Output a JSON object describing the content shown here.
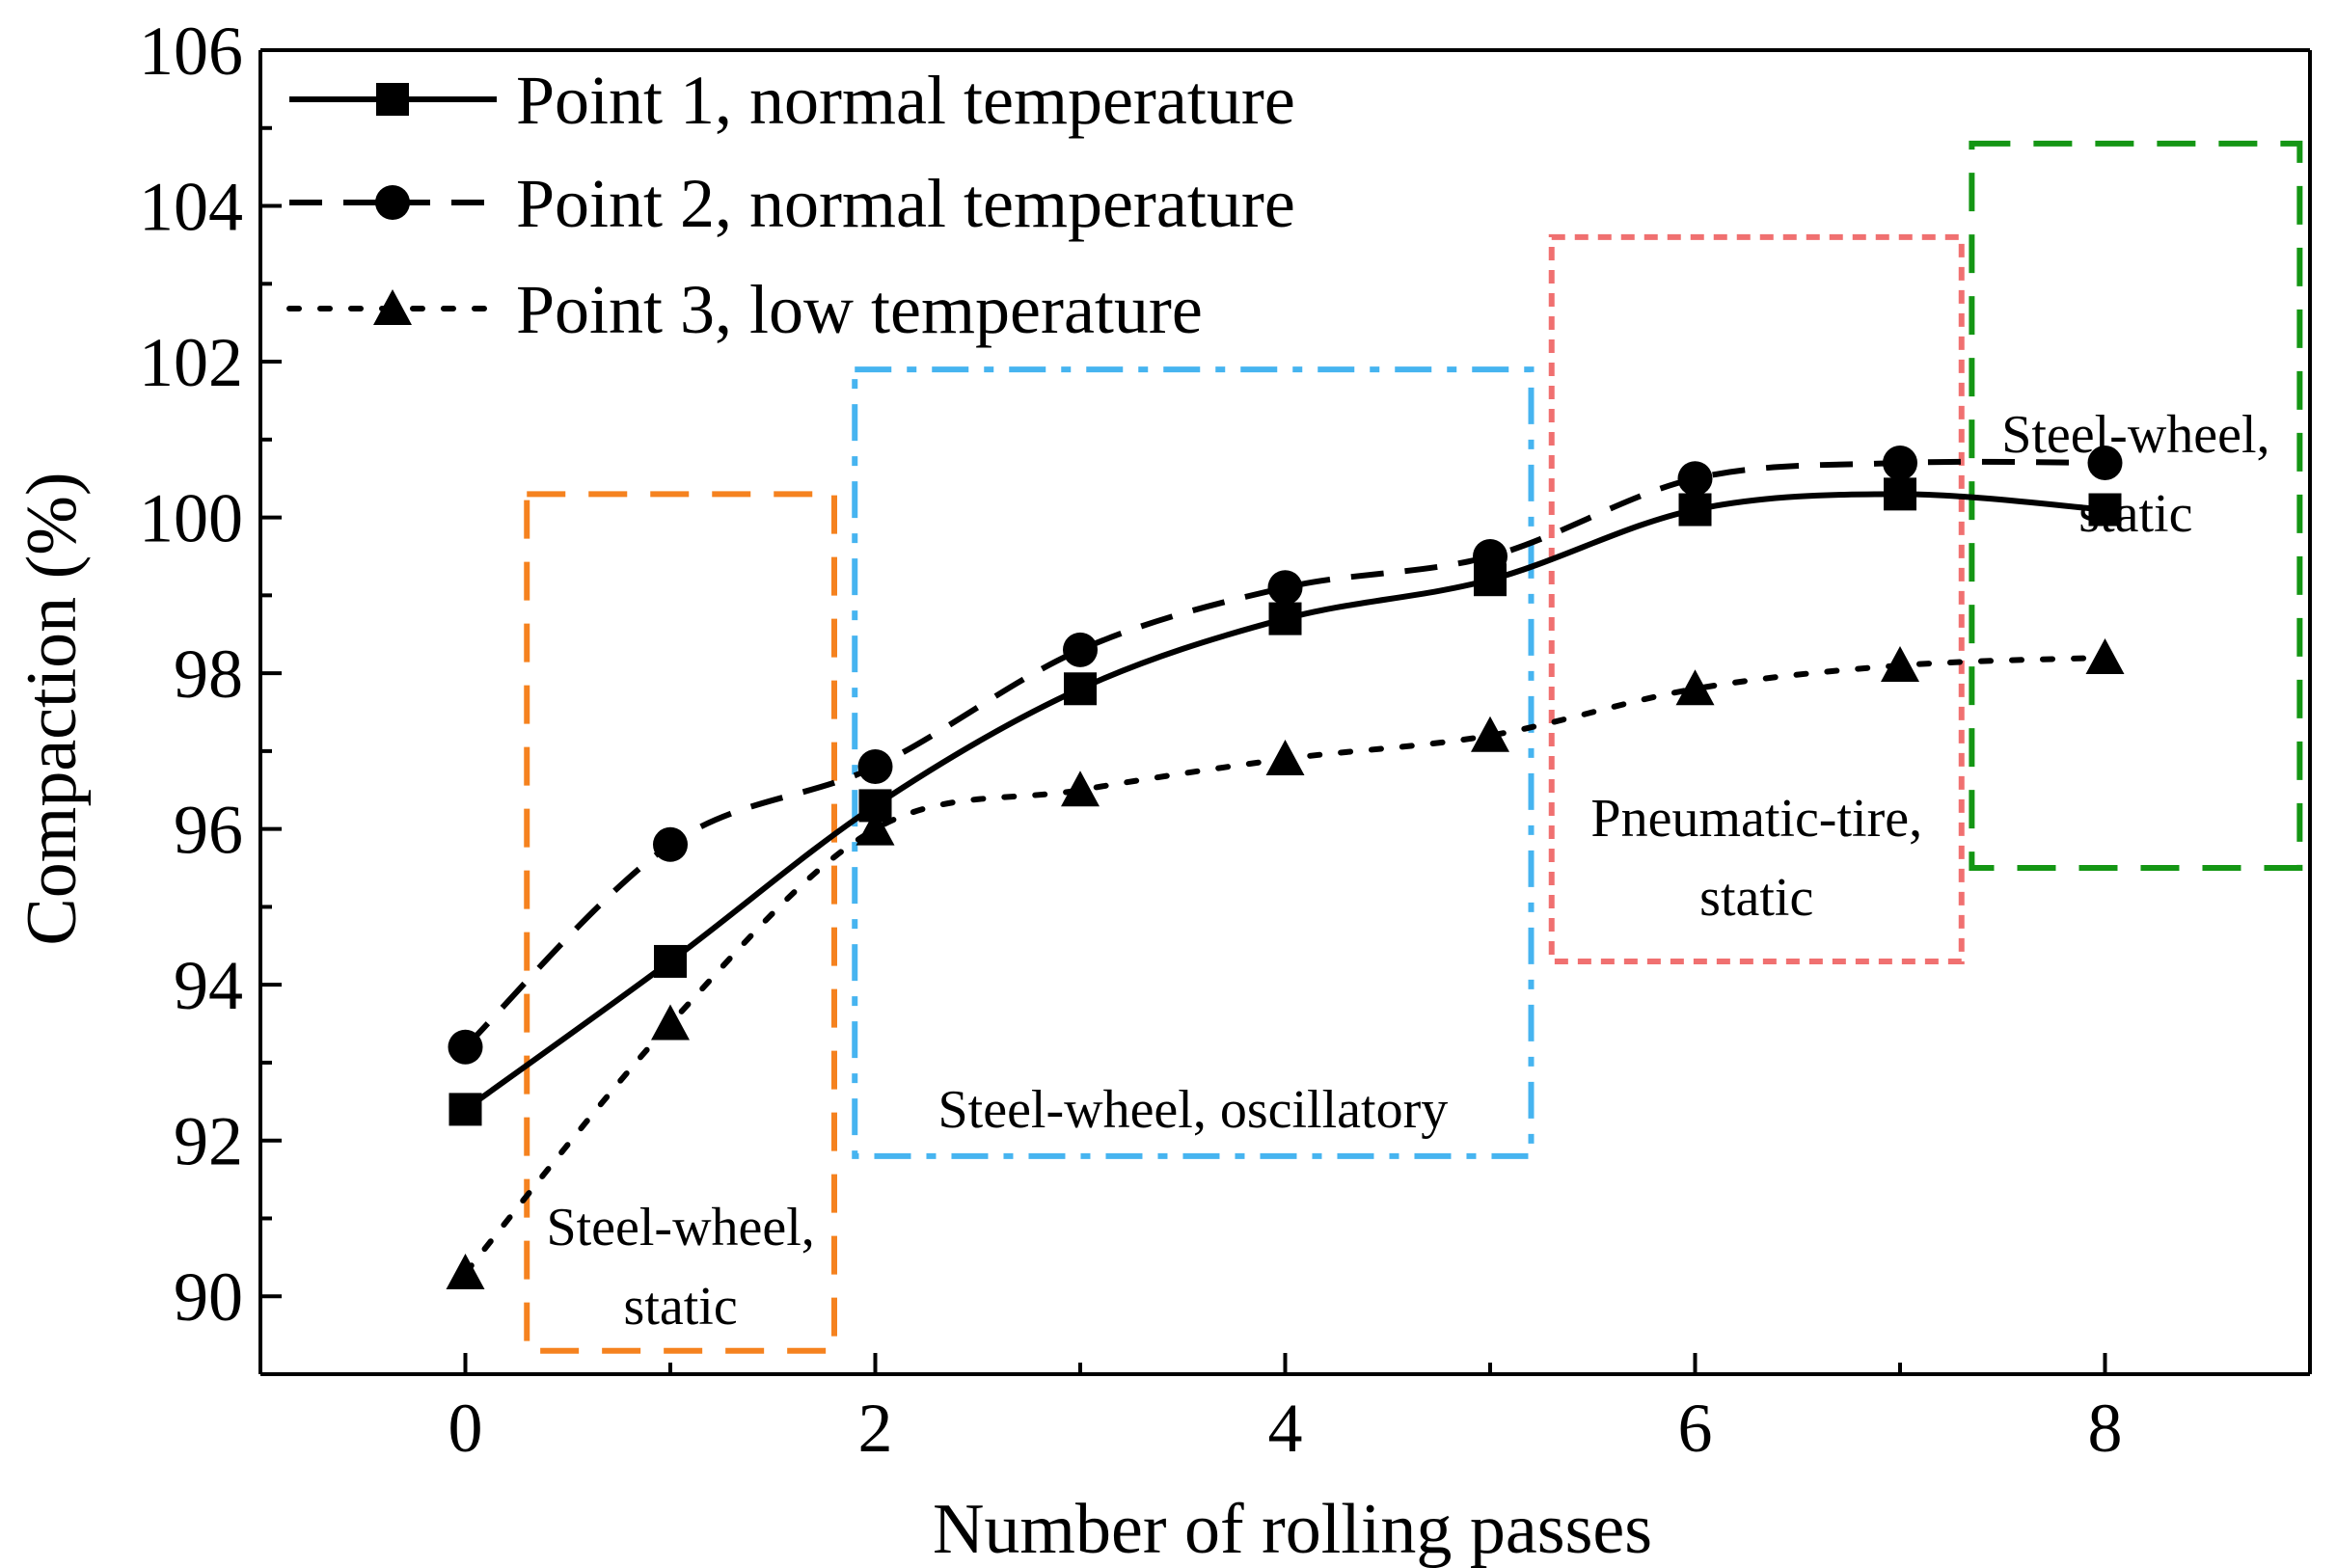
{
  "chart_data": {
    "type": "line",
    "xlabel": "Number of rolling passes",
    "ylabel": "Compaction (%)",
    "xlim": [
      -1,
      9
    ],
    "ylim": [
      89,
      106
    ],
    "xticks": [
      0,
      2,
      4,
      6,
      8
    ],
    "yticks": [
      90,
      92,
      94,
      96,
      98,
      100,
      102,
      104,
      106
    ],
    "grid": false,
    "legend_position": "top-left",
    "x": [
      0,
      1,
      2,
      3,
      4,
      5,
      6,
      7,
      8
    ],
    "series": [
      {
        "name": "Point 1, normal temperature",
        "marker": "square",
        "dash": "solid",
        "color": "#000000",
        "values": [
          92.4,
          94.3,
          96.3,
          97.8,
          98.7,
          99.2,
          100.1,
          100.3,
          100.1
        ]
      },
      {
        "name": "Point 2, normal temperature",
        "marker": "circle",
        "dash": "dashed",
        "color": "#000000",
        "values": [
          93.2,
          95.8,
          96.8,
          98.3,
          99.1,
          99.5,
          100.5,
          100.7,
          100.7
        ]
      },
      {
        "name": "Point 3, low temperature",
        "marker": "triangle",
        "dash": "dotted",
        "color": "#000000",
        "values": [
          90.3,
          93.5,
          96.0,
          96.5,
          96.9,
          97.2,
          97.8,
          98.1,
          98.2
        ]
      }
    ],
    "regions": [
      {
        "lines": [
          "Steel-wheel,",
          "static"
        ],
        "x": [
          0.3,
          1.8
        ],
        "y": [
          89.3,
          100.3
        ],
        "color": "#f5821f",
        "dash": "dashed"
      },
      {
        "lines": [
          "Steel-wheel, oscillatory"
        ],
        "x": [
          1.9,
          5.2
        ],
        "y": [
          91.8,
          101.9
        ],
        "color": "#46b4f0",
        "dash": "dashdot"
      },
      {
        "lines": [
          "Pneumatic-tire,",
          "static"
        ],
        "x": [
          5.3,
          7.3
        ],
        "y": [
          94.3,
          103.6
        ],
        "color": "#f07070",
        "dash": "dotted"
      },
      {
        "lines": [
          "Steel-wheel,",
          "static"
        ],
        "x": [
          7.35,
          8.95
        ],
        "y": [
          95.5,
          104.8
        ],
        "color": "#149614",
        "dash": "dashed"
      }
    ]
  }
}
